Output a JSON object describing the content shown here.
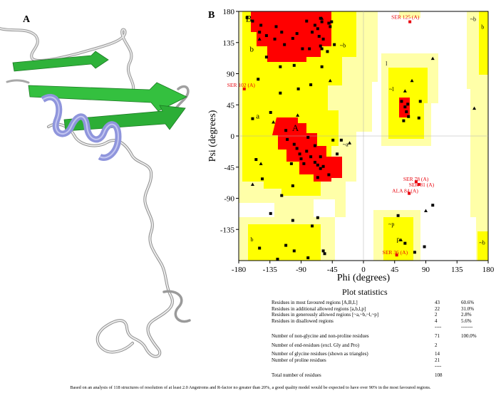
{
  "panels": {
    "a_label": "A",
    "b_label": "B"
  },
  "chart_data": {
    "type": "scatter",
    "title": "",
    "xlabel": "Phi (degrees)",
    "ylabel": "Psi (degrees)",
    "xlim": [
      -180,
      180
    ],
    "ylim": [
      -180,
      180
    ],
    "xticks": [
      "-180",
      "-135",
      "-90",
      "-45",
      "0",
      "45",
      "90",
      "135",
      "180"
    ],
    "yticks": [
      "180",
      "135",
      "90",
      "45",
      "0",
      "-45",
      "-90",
      "-135"
    ],
    "region_labels": [
      "B",
      "b",
      "a",
      "A",
      "~b",
      "~a",
      "l",
      "~l",
      "~p",
      "p",
      "b",
      "~b",
      "~b",
      "b"
    ],
    "colors": {
      "favoured": "#ff0000",
      "allowed": "#ffff00",
      "generous": "#ffffa8",
      "disallowed_bg": "#ffffff",
      "outlier_label": "#e8000a"
    },
    "outlier_labels": [
      "SER 125 (A)",
      "SER 102 (A)",
      "SER 78 (A)",
      "SER 81 (A)",
      "ALA 84 (A)",
      "SER 36 (A)"
    ],
    "outliers": [
      {
        "label": "SER 125 (A)",
        "phi": 67,
        "psi": 165
      },
      {
        "label": "SER 102 (A)",
        "phi": -172,
        "psi": 68
      },
      {
        "label": "SER 78 (A)",
        "phi": 76,
        "psi": -66
      },
      {
        "label": "SER 81 (A)",
        "phi": 80,
        "psi": -70
      },
      {
        "label": "ALA 84 (A)",
        "phi": 66,
        "psi": -83
      },
      {
        "label": "SER 36 (A)",
        "phi": 48,
        "psi": -172
      }
    ],
    "residues": [
      [
        -168,
        171
      ],
      [
        -160,
        166
      ],
      [
        -150,
        150
      ],
      [
        -148,
        160
      ],
      [
        -140,
        145
      ],
      [
        -128,
        140
      ],
      [
        -126,
        158
      ],
      [
        -118,
        150
      ],
      [
        -114,
        132
      ],
      [
        -102,
        141
      ],
      [
        -96,
        148
      ],
      [
        -88,
        126
      ],
      [
        -82,
        166
      ],
      [
        -74,
        150
      ],
      [
        -70,
        160
      ],
      [
        -66,
        155
      ],
      [
        -62,
        170
      ],
      [
        -60,
        165
      ],
      [
        -58,
        140
      ],
      [
        -50,
        163
      ],
      [
        -48,
        158
      ],
      [
        -46,
        165
      ],
      [
        -64,
        144
      ],
      [
        -120,
        100
      ],
      [
        -140,
        114
      ],
      [
        -100,
        102
      ],
      [
        -78,
        126
      ],
      [
        -62,
        130
      ],
      [
        -60,
        126
      ],
      [
        -52,
        122
      ],
      [
        -42,
        132
      ],
      [
        -120,
        62
      ],
      [
        -94,
        68
      ],
      [
        -76,
        74
      ],
      [
        -152,
        82
      ],
      [
        -160,
        25
      ],
      [
        -110,
        -5
      ],
      [
        -100,
        -12
      ],
      [
        -96,
        -18
      ],
      [
        -92,
        -26
      ],
      [
        -90,
        -33
      ],
      [
        -86,
        -40
      ],
      [
        -82,
        -22
      ],
      [
        -76,
        -30
      ],
      [
        -70,
        -38
      ],
      [
        -66,
        -42
      ],
      [
        -62,
        -47
      ],
      [
        -58,
        -44
      ],
      [
        -62,
        -30
      ],
      [
        -70,
        -14
      ],
      [
        -104,
        -40
      ],
      [
        -80,
        -2
      ],
      [
        -112,
        8
      ],
      [
        -50,
        -56
      ],
      [
        -66,
        -60
      ],
      [
        -102,
        -72
      ],
      [
        -32,
        -6
      ],
      [
        -118,
        -86
      ],
      [
        -146,
        -62
      ],
      [
        -155,
        -34
      ],
      [
        -150,
        -162
      ],
      [
        -112,
        -158
      ],
      [
        -56,
        -170
      ],
      [
        -58,
        -166
      ],
      [
        -134,
        -112
      ],
      [
        -102,
        -122
      ],
      [
        -66,
        -118
      ],
      [
        62,
        35
      ],
      [
        60,
        42
      ],
      [
        65,
        28
      ],
      [
        55,
        50
      ],
      [
        58,
        22
      ],
      [
        64,
        46
      ],
      [
        80,
        26
      ],
      [
        82,
        50
      ],
      [
        74,
        -168
      ],
      [
        88,
        -160
      ],
      [
        60,
        -155
      ],
      [
        -44,
        -6
      ],
      [
        -80,
        -176
      ],
      [
        -38,
        -26
      ],
      [
        -74,
        -130
      ],
      [
        -100,
        -166
      ],
      [
        -124,
        -178
      ],
      [
        -134,
        34
      ],
      [
        -60,
        100
      ],
      [
        100,
        -100
      ],
      [
        50,
        -115
      ]
    ],
    "glycines": [
      [
        -150,
        140
      ],
      [
        -130,
        20
      ],
      [
        -160,
        -70
      ],
      [
        100,
        112
      ],
      [
        -48,
        80
      ],
      [
        -148,
        -40
      ],
      [
        160,
        40
      ],
      [
        -60,
        170
      ],
      [
        60,
        65
      ],
      [
        -20,
        -10
      ],
      [
        90,
        -108
      ],
      [
        54,
        -150
      ],
      [
        70,
        80
      ],
      [
        -95,
        30
      ]
    ]
  },
  "stats": {
    "title": "Plot statistics",
    "rows": [
      {
        "label": "Residues in most favoured regions  [A,B,L]",
        "count": "43",
        "percent": "60.6%"
      },
      {
        "label": "Residues in additional allowed regions  [a,b,l,p]",
        "count": "22",
        "percent": "31.0%"
      },
      {
        "label": "Residues in generously allowed regions  [~a,~b,~l,~p]",
        "count": "2",
        "percent": "2.8%"
      },
      {
        "label": "Residues in disallowed regions",
        "count": "4",
        "percent": "5.6%"
      },
      {
        "label": "",
        "count": "----",
        "percent": "-------"
      },
      {
        "label": "Number of non-glycine and non-proline residues",
        "count": "71",
        "percent": "100.0%"
      },
      {
        "label": "Number of end-residues (excl. Gly and Pro)",
        "count": "2",
        "percent": ""
      },
      {
        "label": "Number of glycine residues (shown as triangles)",
        "count": "14",
        "percent": ""
      },
      {
        "label": "Number of proline residues",
        "count": "21",
        "percent": ""
      },
      {
        "label": "",
        "count": "----",
        "percent": ""
      },
      {
        "label": "Total number of residues",
        "count": "108",
        "percent": ""
      }
    ]
  },
  "footnote": "Based on an analysis of 118 structures of resolution of at least 2.0 Angstroms and R-factor no greater than 20%, a good quality model would be expected to have over 90% in the most favoured regions."
}
